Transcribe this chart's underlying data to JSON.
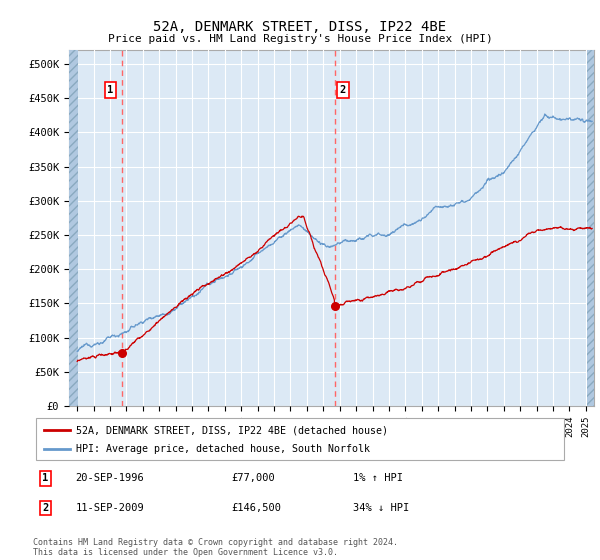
{
  "title": "52A, DENMARK STREET, DISS, IP22 4BE",
  "subtitle": "Price paid vs. HM Land Registry's House Price Index (HPI)",
  "background_color": "#dce9f5",
  "plot_bg": "#dce9f5",
  "grid_color": "#ffffff",
  "purchase1": {
    "date_num": 1996.72,
    "price": 77000,
    "label": "1",
    "date_str": "20-SEP-1996"
  },
  "purchase2": {
    "date_num": 2009.69,
    "price": 146500,
    "label": "2",
    "date_str": "11-SEP-2009"
  },
  "xlim": [
    1993.5,
    2025.5
  ],
  "ylim": [
    0,
    520000
  ],
  "yticks": [
    0,
    50000,
    100000,
    150000,
    200000,
    250000,
    300000,
    350000,
    400000,
    450000,
    500000
  ],
  "ytick_labels": [
    "£0",
    "£50K",
    "£100K",
    "£150K",
    "£200K",
    "£250K",
    "£300K",
    "£350K",
    "£400K",
    "£450K",
    "£500K"
  ],
  "legend_line1": "52A, DENMARK STREET, DISS, IP22 4BE (detached house)",
  "legend_line2": "HPI: Average price, detached house, South Norfolk",
  "footer1": "Contains HM Land Registry data © Crown copyright and database right 2024.",
  "footer2": "This data is licensed under the Open Government Licence v3.0.",
  "note1_label": "1",
  "note1_date": "20-SEP-1996",
  "note1_price": "£77,000",
  "note1_hpi": "1% ↑ HPI",
  "note2_label": "2",
  "note2_date": "11-SEP-2009",
  "note2_price": "£146,500",
  "note2_hpi": "34% ↓ HPI",
  "line_red_color": "#cc0000",
  "line_blue_color": "#6699cc",
  "dashed_line_color": "#ff6666"
}
